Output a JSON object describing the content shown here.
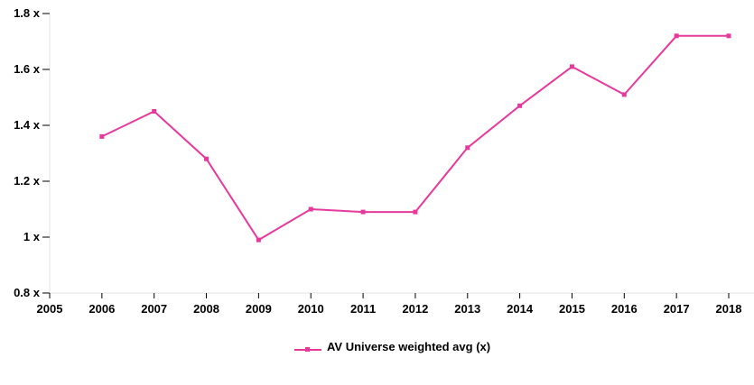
{
  "chart_data": {
    "type": "line",
    "x": [
      2006,
      2007,
      2008,
      2009,
      2010,
      2011,
      2012,
      2013,
      2014,
      2015,
      2016,
      2017,
      2018
    ],
    "series": [
      {
        "name": "AV Universe weighted avg (x)",
        "color": "#e6399b",
        "values": [
          1.36,
          1.45,
          1.28,
          0.99,
          1.1,
          1.09,
          1.09,
          1.32,
          1.47,
          1.61,
          1.51,
          1.72,
          1.72
        ]
      }
    ],
    "xlim": [
      2005,
      2018
    ],
    "ylim": [
      0.8,
      1.8
    ],
    "x_ticks": [
      "2005",
      "2006",
      "2007",
      "2008",
      "2009",
      "2010",
      "2011",
      "2012",
      "2013",
      "2014",
      "2015",
      "2016",
      "2017",
      "2018"
    ],
    "y_ticks": [
      "0.8 x",
      "1 x",
      "1.2 x",
      "1.4 x",
      "1.6 x",
      "1.8 x"
    ],
    "y_tick_values": [
      0.8,
      1.0,
      1.2,
      1.4,
      1.6,
      1.8
    ],
    "grid": false,
    "legend_position": "bottom-center"
  }
}
